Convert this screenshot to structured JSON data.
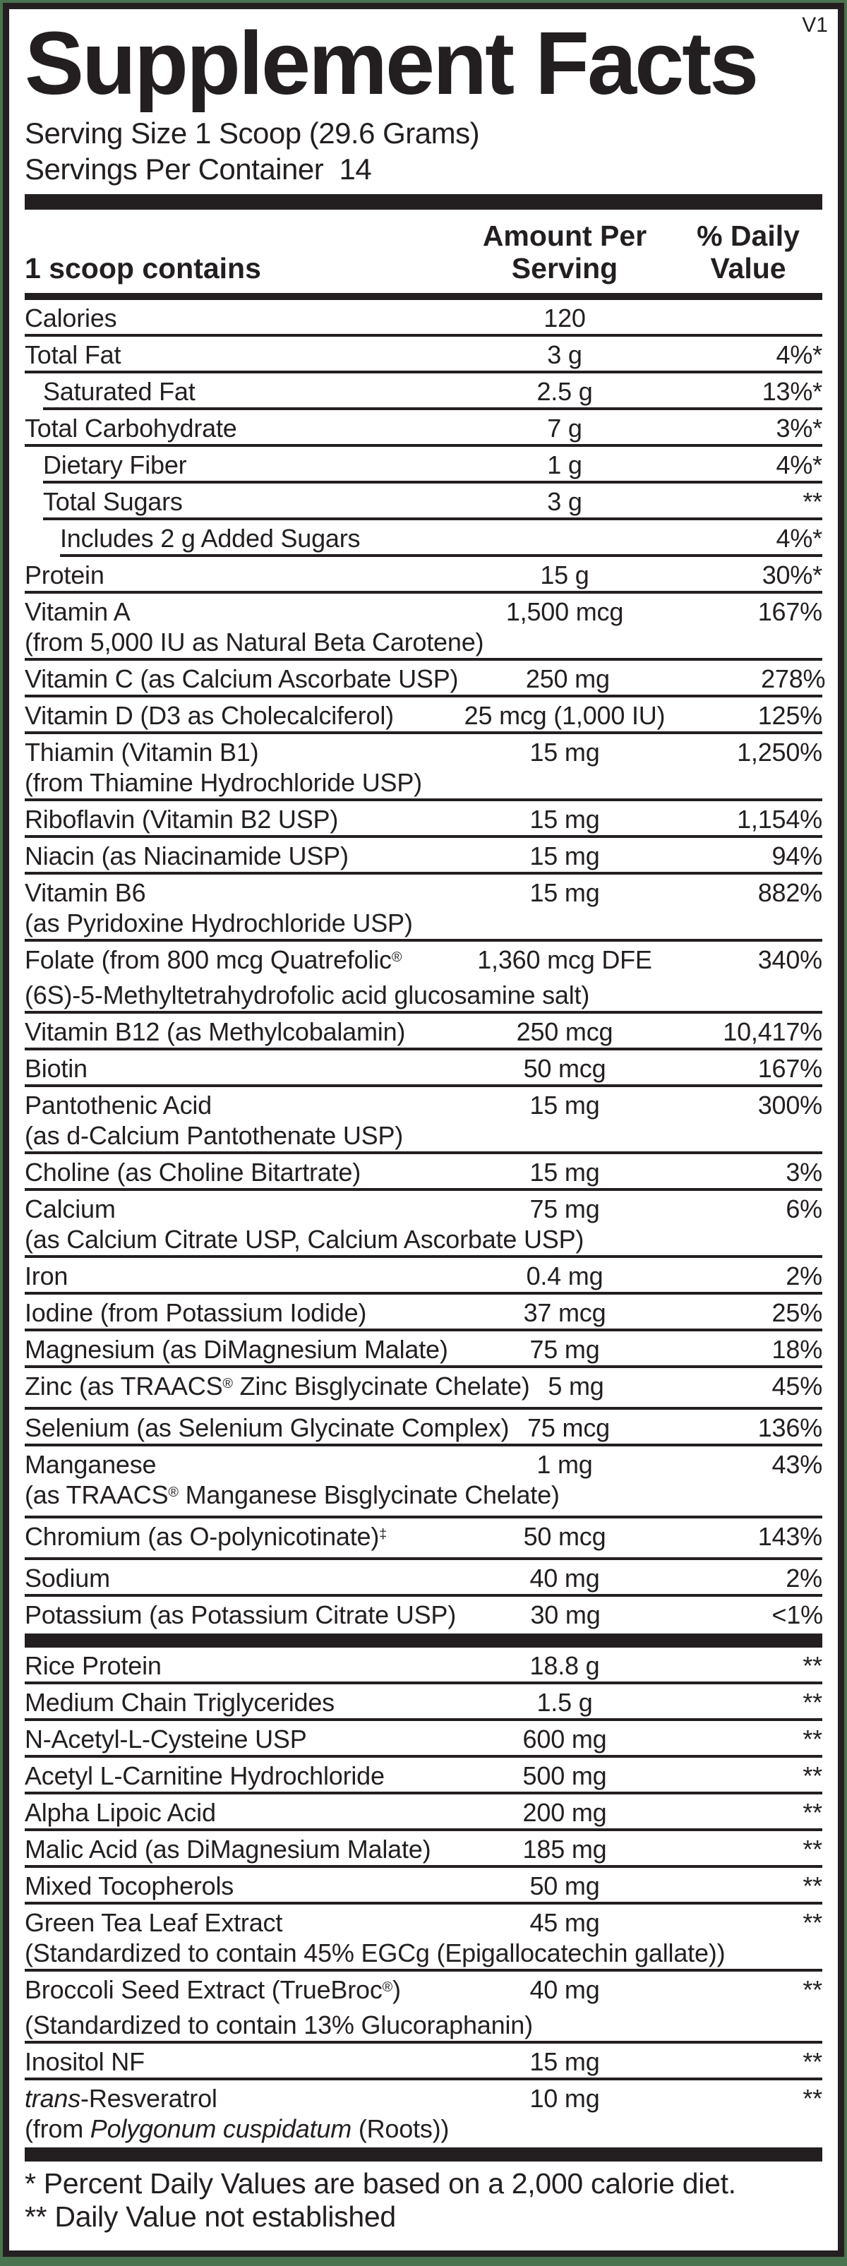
{
  "colors": {
    "background_green": "#4a7350",
    "border_black": "#242021",
    "text_black": "#231f20"
  },
  "header": {
    "title": "Supplement Facts",
    "version": "V1",
    "serving_size": "Serving Size 1 Scoop (29.6 Grams)",
    "servings_per_container": "Servings Per Container  14"
  },
  "columns": {
    "contains": "1 scoop contains",
    "amount_per_serving": "Amount Per Serving",
    "daily_value": "% Daily Value"
  },
  "sections": [
    {
      "rows": [
        {
          "name": "Calories",
          "amount": "120",
          "dv": "",
          "indent": 0
        },
        {
          "name": "Total Fat",
          "amount": "3 g",
          "dv": "4%*",
          "indent": 0
        },
        {
          "name": "Saturated Fat",
          "amount": "2.5 g",
          "dv": "13%*",
          "indent": 1
        },
        {
          "name": "Total Carbohydrate",
          "amount": "7 g",
          "dv": "3%*",
          "indent": 0
        },
        {
          "name": "Dietary Fiber",
          "amount": "1 g",
          "dv": "4%*",
          "indent": 1
        },
        {
          "name": "Total Sugars",
          "amount": "3 g",
          "dv": "**",
          "indent": 1
        },
        {
          "name": "Includes 2 g Added Sugars",
          "amount": "",
          "dv": "4%*",
          "indent": 2
        },
        {
          "name": "Protein",
          "amount": "15 g",
          "dv": "30%*",
          "indent": 0
        },
        {
          "name": "Vitamin A",
          "name2": "(from 5,000 IU as Natural Beta Carotene)",
          "amount": "1,500 mcg",
          "dv": "167%",
          "indent": 0
        },
        {
          "name": "Vitamin C (as Calcium Ascorbate USP)",
          "amount": "250 mg",
          "dv": "278%",
          "indent": 0
        },
        {
          "name": "Vitamin D (D3 as Cholecalciferol)",
          "amount": "25 mcg (1,000 IU)",
          "dv": "125%",
          "indent": 0
        },
        {
          "name": "Thiamin (Vitamin B1)",
          "name2": "(from Thiamine Hydrochloride USP)",
          "amount": "15 mg",
          "dv": "1,250%",
          "indent": 0
        },
        {
          "name": "Riboflavin (Vitamin B2 USP)",
          "amount": "15 mg",
          "dv": "1,154%",
          "indent": 0
        },
        {
          "name": "Niacin (as Niacinamide USP)",
          "amount": "15 mg",
          "dv": "94%",
          "indent": 0
        },
        {
          "name": "Vitamin B6",
          "name2": "(as Pyridoxine Hydrochloride USP)",
          "amount": "15 mg",
          "dv": "882%",
          "indent": 0
        },
        {
          "name": "Folate (from 800 mcg Quatrefolic®",
          "name2": "(6S)-5-Methyltetrahydrofolic acid glucosamine salt)",
          "amount": "1,360 mcg DFE",
          "dv": "340%",
          "indent": 0
        },
        {
          "name": "Vitamin B12 (as Methylcobalamin)",
          "amount": "250 mcg",
          "dv": "10,417%",
          "indent": 0
        },
        {
          "name": "Biotin",
          "amount": "50 mcg",
          "dv": "167%",
          "indent": 0
        },
        {
          "name": "Pantothenic Acid",
          "name2": "(as d-Calcium Pantothenate USP)",
          "amount": "15 mg",
          "dv": "300%",
          "indent": 0
        },
        {
          "name": "Choline (as Choline Bitartrate)",
          "amount": "15 mg",
          "dv": "3%",
          "indent": 0
        },
        {
          "name": "Calcium",
          "name2": "(as Calcium Citrate USP, Calcium Ascorbate USP)",
          "amount": "75 mg",
          "dv": "6%",
          "indent": 0
        },
        {
          "name": "Iron",
          "amount": "0.4 mg",
          "dv": "2%",
          "indent": 0
        },
        {
          "name": "Iodine (from Potassium Iodide)",
          "amount": "37 mcg",
          "dv": "25%",
          "indent": 0
        },
        {
          "name": "Magnesium (as DiMagnesium Malate)",
          "amount": "75 mg",
          "dv": "18%",
          "indent": 0
        },
        {
          "name": "Zinc (as TRAACS® Zinc Bisglycinate Chelate)",
          "amount": "5 mg",
          "dv": "45%",
          "indent": 0,
          "inline": true
        },
        {
          "name": "Selenium (as Selenium Glycinate Complex)",
          "amount": "75 mcg",
          "dv": "136%",
          "indent": 0,
          "inline": true
        },
        {
          "name": "Manganese",
          "name2": "(as TRAACS® Manganese Bisglycinate Chelate)",
          "amount": "1 mg",
          "dv": "43%",
          "indent": 0
        },
        {
          "name": "Chromium (as O-polynicotinate)‡",
          "amount": "50 mcg",
          "dv": "143%",
          "indent": 0
        },
        {
          "name": "Sodium",
          "amount": "40 mg",
          "dv": "2%",
          "indent": 0
        },
        {
          "name": "Potassium (as Potassium Citrate USP)",
          "amount": "30 mg",
          "dv": "<1%",
          "indent": 0
        }
      ]
    },
    {
      "rows": [
        {
          "name": "Rice Protein",
          "amount": "18.8 g",
          "dv": "**",
          "indent": 0
        },
        {
          "name": "Medium Chain Triglycerides",
          "amount": "1.5 g",
          "dv": "**",
          "indent": 0
        },
        {
          "name": "N-Acetyl-L-Cysteine USP",
          "amount": "600 mg",
          "dv": "**",
          "indent": 0
        },
        {
          "name": "Acetyl L-Carnitine Hydrochloride",
          "amount": "500 mg",
          "dv": "**",
          "indent": 0
        },
        {
          "name": "Alpha Lipoic Acid",
          "amount": "200 mg",
          "dv": "**",
          "indent": 0
        },
        {
          "name": "Malic Acid (as DiMagnesium Malate)",
          "amount": "185 mg",
          "dv": "**",
          "indent": 0
        },
        {
          "name": "Mixed Tocopherols",
          "amount": "50 mg",
          "dv": "**",
          "indent": 0
        },
        {
          "name": "Green Tea Leaf Extract",
          "name2": "(Standardized to contain 45% EGCg (Epigallocatechin gallate))",
          "amount": "45 mg",
          "dv": "**",
          "indent": 0
        },
        {
          "name": "Broccoli Seed Extract (TrueBroc®)",
          "name2": "(Standardized to contain 13% Glucoraphanin)",
          "amount": "40 mg",
          "dv": "**",
          "indent": 0
        },
        {
          "name": "Inositol NF",
          "amount": "15 mg",
          "dv": "**",
          "indent": 0
        },
        {
          "name": "_trans_-Resveratrol",
          "name2": "(from _Polygonum cuspidatum_ (Roots))",
          "amount": "10 mg",
          "dv": "**",
          "indent": 0
        }
      ]
    }
  ],
  "footnotes": [
    "* Percent Daily Values are based on a 2,000 calorie diet.",
    "** Daily Value not established"
  ]
}
